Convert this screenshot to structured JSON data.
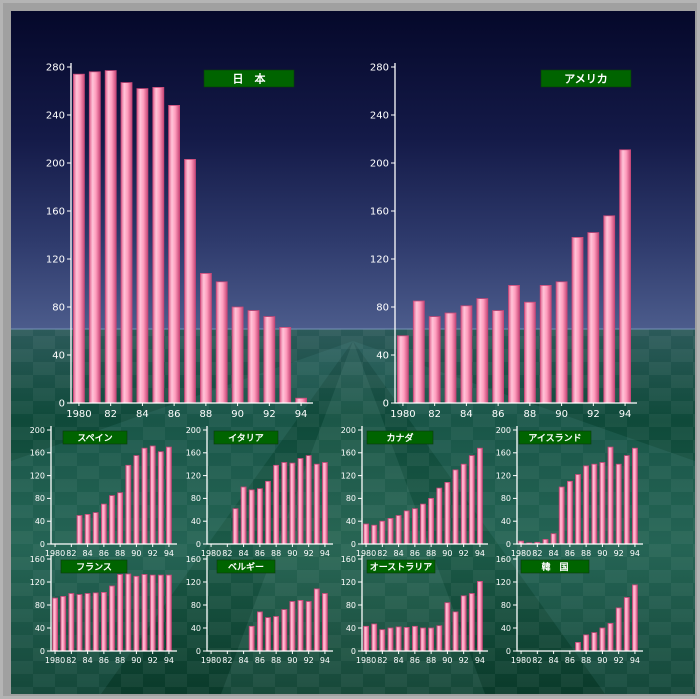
{
  "colors": {
    "bar_fill": "#ff9fbf",
    "bar_edge": "#c84878",
    "label_bg": "#006400",
    "axis": "#ffffff"
  },
  "chart_data": [
    {
      "type": "bar",
      "title": "日　本",
      "ylim": [
        0,
        280
      ],
      "y_ticks": [
        0,
        40,
        80,
        120,
        160,
        200,
        240,
        280
      ],
      "x_ticks": [
        "1980",
        "82",
        "84",
        "86",
        "88",
        "90",
        "92",
        "94"
      ],
      "categories": [
        "1980",
        "1981",
        "1982",
        "1983",
        "1984",
        "1985",
        "1986",
        "1987",
        "1988",
        "1989",
        "1990",
        "1991",
        "1992",
        "1993",
        "1994"
      ],
      "values": [
        274,
        276,
        277,
        267,
        262,
        263,
        248,
        203,
        108,
        101,
        80,
        77,
        72,
        63,
        4
      ]
    },
    {
      "type": "bar",
      "title": "アメリカ",
      "ylim": [
        0,
        280
      ],
      "y_ticks": [
        0,
        40,
        80,
        120,
        160,
        200,
        240,
        280
      ],
      "x_ticks": [
        "1980",
        "82",
        "84",
        "86",
        "88",
        "90",
        "92",
        "94"
      ],
      "categories": [
        "1980",
        "1981",
        "1982",
        "1983",
        "1984",
        "1985",
        "1986",
        "1987",
        "1988",
        "1989",
        "1990",
        "1991",
        "1992",
        "1993",
        "1994"
      ],
      "values": [
        56,
        85,
        72,
        75,
        81,
        87,
        77,
        98,
        84,
        98,
        101,
        138,
        142,
        156,
        211
      ]
    },
    {
      "type": "bar",
      "title": "スペイン",
      "ylim": [
        0,
        200
      ],
      "y_ticks": [
        0,
        40,
        80,
        120,
        160,
        200
      ],
      "x_ticks": [
        "1980",
        "82",
        "84",
        "86",
        "88",
        "90",
        "92",
        "94"
      ],
      "categories": [
        "1980",
        "1981",
        "1982",
        "1983",
        "1984",
        "1985",
        "1986",
        "1987",
        "1988",
        "1989",
        "1990",
        "1991",
        "1992",
        "1993",
        "1994"
      ],
      "values": [
        0,
        0,
        0,
        50,
        52,
        55,
        70,
        85,
        90,
        138,
        155,
        168,
        172,
        162,
        170
      ]
    },
    {
      "type": "bar",
      "title": "イタリア",
      "ylim": [
        0,
        200
      ],
      "y_ticks": [
        0,
        40,
        80,
        120,
        160,
        200
      ],
      "x_ticks": [
        "1980",
        "82",
        "84",
        "86",
        "88",
        "90",
        "92",
        "94"
      ],
      "categories": [
        "1980",
        "1981",
        "1982",
        "1983",
        "1984",
        "1985",
        "1986",
        "1987",
        "1988",
        "1989",
        "1990",
        "1991",
        "1992",
        "1993",
        "1994"
      ],
      "values": [
        0,
        0,
        0,
        62,
        100,
        95,
        97,
        110,
        138,
        143,
        142,
        150,
        155,
        140,
        143
      ]
    },
    {
      "type": "bar",
      "title": "カナダ",
      "ylim": [
        0,
        200
      ],
      "y_ticks": [
        0,
        40,
        80,
        120,
        160,
        200
      ],
      "x_ticks": [
        "1980",
        "82",
        "84",
        "86",
        "88",
        "90",
        "92",
        "94"
      ],
      "categories": [
        "1980",
        "1981",
        "1982",
        "1983",
        "1984",
        "1985",
        "1986",
        "1987",
        "1988",
        "1989",
        "1990",
        "1991",
        "1992",
        "1993",
        "1994"
      ],
      "values": [
        35,
        33,
        40,
        45,
        50,
        58,
        62,
        70,
        80,
        98,
        108,
        130,
        140,
        155,
        168
      ]
    },
    {
      "type": "bar",
      "title": "アイスランド",
      "ylim": [
        0,
        200
      ],
      "y_ticks": [
        0,
        40,
        80,
        120,
        160,
        200
      ],
      "x_ticks": [
        "1980",
        "82",
        "84",
        "86",
        "88",
        "90",
        "92",
        "94"
      ],
      "categories": [
        "1980",
        "1981",
        "1982",
        "1983",
        "1984",
        "1985",
        "1986",
        "1987",
        "1988",
        "1989",
        "1990",
        "1991",
        "1992",
        "1993",
        "1994"
      ],
      "values": [
        5,
        2,
        3,
        8,
        18,
        100,
        110,
        122,
        137,
        140,
        143,
        170,
        140,
        155,
        168
      ]
    },
    {
      "type": "bar",
      "title": "フランス",
      "ylim": [
        0,
        160
      ],
      "y_ticks": [
        0,
        40,
        80,
        120,
        160
      ],
      "x_ticks": [
        "1980",
        "82",
        "84",
        "86",
        "88",
        "90",
        "92",
        "94"
      ],
      "categories": [
        "1980",
        "1981",
        "1982",
        "1983",
        "1984",
        "1985",
        "1986",
        "1987",
        "1988",
        "1989",
        "1990",
        "1991",
        "1992",
        "1993",
        "1994"
      ],
      "values": [
        92,
        95,
        100,
        98,
        100,
        101,
        102,
        113,
        133,
        134,
        130,
        133,
        132,
        132,
        132
      ]
    },
    {
      "type": "bar",
      "title": "ベルギー",
      "ylim": [
        0,
        160
      ],
      "y_ticks": [
        0,
        40,
        80,
        120,
        160
      ],
      "x_ticks": [
        "1980",
        "82",
        "84",
        "86",
        "88",
        "90",
        "92",
        "94"
      ],
      "categories": [
        "1980",
        "1981",
        "1982",
        "1983",
        "1984",
        "1985",
        "1986",
        "1987",
        "1988",
        "1989",
        "1990",
        "1991",
        "1992",
        "1993",
        "1994"
      ],
      "values": [
        0,
        0,
        0,
        0,
        0,
        43,
        68,
        58,
        60,
        72,
        86,
        88,
        86,
        108,
        100
      ]
    },
    {
      "type": "bar",
      "title": "オーストラリア",
      "ylim": [
        0,
        160
      ],
      "y_ticks": [
        0,
        40,
        80,
        120,
        160
      ],
      "x_ticks": [
        "1980",
        "82",
        "84",
        "86",
        "88",
        "90",
        "92",
        "94"
      ],
      "categories": [
        "1980",
        "1981",
        "1982",
        "1983",
        "1984",
        "1985",
        "1986",
        "1987",
        "1988",
        "1989",
        "1990",
        "1991",
        "1992",
        "1993",
        "1994"
      ],
      "values": [
        43,
        47,
        37,
        40,
        42,
        41,
        43,
        40,
        40,
        44,
        84,
        68,
        96,
        100,
        121
      ]
    },
    {
      "type": "bar",
      "title": "韓　国",
      "ylim": [
        0,
        160
      ],
      "y_ticks": [
        0,
        40,
        80,
        120,
        160
      ],
      "x_ticks": [
        "1980",
        "82",
        "84",
        "86",
        "88",
        "90",
        "92",
        "94"
      ],
      "categories": [
        "1980",
        "1981",
        "1982",
        "1983",
        "1984",
        "1985",
        "1986",
        "1987",
        "1988",
        "1989",
        "1990",
        "1991",
        "1992",
        "1993",
        "1994"
      ],
      "values": [
        0,
        0,
        0,
        0,
        0,
        0,
        0,
        15,
        28,
        32,
        40,
        48,
        75,
        93,
        115
      ]
    }
  ]
}
